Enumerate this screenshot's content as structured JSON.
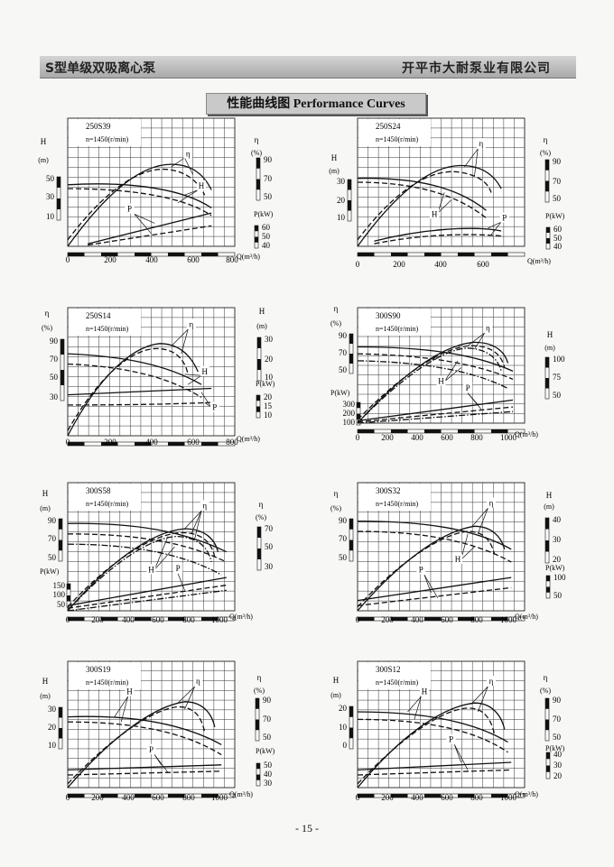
{
  "header": {
    "left": "S型单级双吸离心泵",
    "right": "开平市大耐泵业有限公司"
  },
  "banner": {
    "zh": "性能曲线图",
    "en": "Performance Curves"
  },
  "page_number": "- 15 -",
  "chart_data": [
    {
      "id": "250S39",
      "type": "line",
      "model": "250S39",
      "speed": "n=1450(r/min)",
      "x_label": "Q(m³/h)",
      "x_ticks": [
        "0",
        "200",
        "400",
        "600",
        "800"
      ],
      "x_range": [
        0,
        800
      ],
      "left_axis": {
        "name": "H",
        "unit": "(m)",
        "ticks": [
          "50",
          "30",
          "10"
        ]
      },
      "right_axis": {
        "name": "η",
        "unit": "(%)",
        "ticks": [
          "90",
          "70",
          "50"
        ]
      },
      "power_axis": {
        "name": "P(kW)",
        "ticks": [
          "60",
          "50",
          "40"
        ]
      },
      "curve_labels": [
        "η",
        "H",
        "P"
      ]
    },
    {
      "id": "250S24",
      "type": "line",
      "model": "250S24",
      "speed": "n=1450(r/min)",
      "x_label": "Q(m³/h)",
      "x_ticks": [
        "0",
        "200",
        "400",
        "600"
      ],
      "x_range": [
        0,
        800
      ],
      "left_axis": {
        "name": "H",
        "unit": "(m)",
        "ticks": [
          "30",
          "20",
          "10"
        ]
      },
      "right_axis": {
        "name": "η",
        "unit": "(%)",
        "ticks": [
          "90",
          "70",
          "50"
        ]
      },
      "power_axis": {
        "name": "P(kW)",
        "ticks": [
          "60",
          "50",
          "40"
        ]
      },
      "curve_labels": [
        "η",
        "H",
        "P"
      ]
    },
    {
      "id": "250S14",
      "type": "line",
      "model": "250S14",
      "speed": "n=1450(r/min)",
      "x_label": "Q(m³/h)",
      "x_ticks": [
        "0",
        "200",
        "400",
        "600",
        "800"
      ],
      "x_range": [
        0,
        800
      ],
      "left_axis": {
        "name": "η",
        "unit": "(%)",
        "ticks": [
          "90",
          "70",
          "50",
          "30"
        ]
      },
      "right_axis": {
        "name": "H",
        "unit": "(m)",
        "ticks": [
          "30",
          "20",
          "10"
        ]
      },
      "power_axis": {
        "name": "P(kW)",
        "ticks": [
          "20",
          "15",
          "10"
        ]
      },
      "curve_labels": [
        "η",
        "H",
        "P"
      ]
    },
    {
      "id": "300S90",
      "type": "line",
      "model": "300S90",
      "speed": "n=1450(r/min)",
      "x_label": "Q(m³/h)",
      "x_ticks": [
        "0",
        "200",
        "400",
        "600",
        "800",
        "1000"
      ],
      "x_range": [
        0,
        1000
      ],
      "left_axis": {
        "name": "η",
        "unit": "(%)",
        "ticks": [
          "90",
          "70",
          "50"
        ]
      },
      "right_axis": {
        "name": "H",
        "unit": "(m)",
        "ticks": [
          "100",
          "75",
          "50"
        ]
      },
      "power_axis": {
        "name": "P(kW)",
        "ticks": [
          "300",
          "200",
          "100"
        ]
      },
      "curve_labels": [
        "η",
        "H",
        "P"
      ]
    },
    {
      "id": "300S58",
      "type": "line",
      "model": "300S58",
      "speed": "n=1450(r/min)",
      "x_label": "Q(m³/h)",
      "x_ticks": [
        "0",
        "200",
        "400",
        "600",
        "800",
        "1000"
      ],
      "x_range": [
        0,
        1000
      ],
      "left_axis": {
        "name": "H",
        "unit": "(m)",
        "ticks": [
          "90",
          "70",
          "50"
        ]
      },
      "right_axis": {
        "name": "η",
        "unit": "(%)",
        "ticks": [
          "70",
          "50",
          "30"
        ]
      },
      "power_axis": {
        "name": "P(kW)",
        "ticks": [
          "150",
          "100",
          "50"
        ]
      },
      "curve_labels": [
        "η",
        "H",
        "P"
      ]
    },
    {
      "id": "300S32",
      "type": "line",
      "model": "300S32",
      "speed": "n=1450(r/min)",
      "x_label": "Q(m³/h)",
      "x_ticks": [
        "0",
        "200",
        "400",
        "600",
        "800",
        "1000"
      ],
      "x_range": [
        0,
        1000
      ],
      "left_axis": {
        "name": "η",
        "unit": "(%)",
        "ticks": [
          "90",
          "70",
          "50"
        ]
      },
      "right_axis": {
        "name": "H",
        "unit": "(m)",
        "ticks": [
          "40",
          "30",
          "20"
        ]
      },
      "power_axis": {
        "name": "P(kW)",
        "ticks": [
          "100",
          "50"
        ]
      },
      "curve_labels": [
        "η",
        "H",
        "P"
      ]
    },
    {
      "id": "300S19",
      "type": "line",
      "model": "300S19",
      "speed": "n=1450(r/min)",
      "x_label": "Q(m³/h)",
      "x_ticks": [
        "0",
        "200",
        "400",
        "600",
        "800",
        "1000"
      ],
      "x_range": [
        0,
        1000
      ],
      "left_axis": {
        "name": "H",
        "unit": "(m)",
        "ticks": [
          "30",
          "20",
          "10"
        ]
      },
      "right_axis": {
        "name": "η",
        "unit": "(%)",
        "ticks": [
          "90",
          "70",
          "50"
        ]
      },
      "power_axis": {
        "name": "P(kW)",
        "ticks": [
          "50",
          "40",
          "30"
        ]
      },
      "curve_labels": [
        "H",
        "η",
        "P"
      ]
    },
    {
      "id": "300S12",
      "type": "line",
      "model": "300S12",
      "speed": "n=1450(r/min)",
      "x_label": "Q(m³/h)",
      "x_ticks": [
        "0",
        "200",
        "400",
        "600",
        "800",
        "1000"
      ],
      "x_range": [
        0,
        1000
      ],
      "left_axis": {
        "name": "H",
        "unit": "(m)",
        "ticks": [
          "20",
          "10",
          "0"
        ]
      },
      "right_axis": {
        "name": "η",
        "unit": "(%)",
        "ticks": [
          "90",
          "70",
          "50"
        ]
      },
      "power_axis": {
        "name": "P(kW)",
        "ticks": [
          "40",
          "30",
          "20"
        ]
      },
      "curve_labels": [
        "H",
        "η",
        "P"
      ]
    }
  ]
}
